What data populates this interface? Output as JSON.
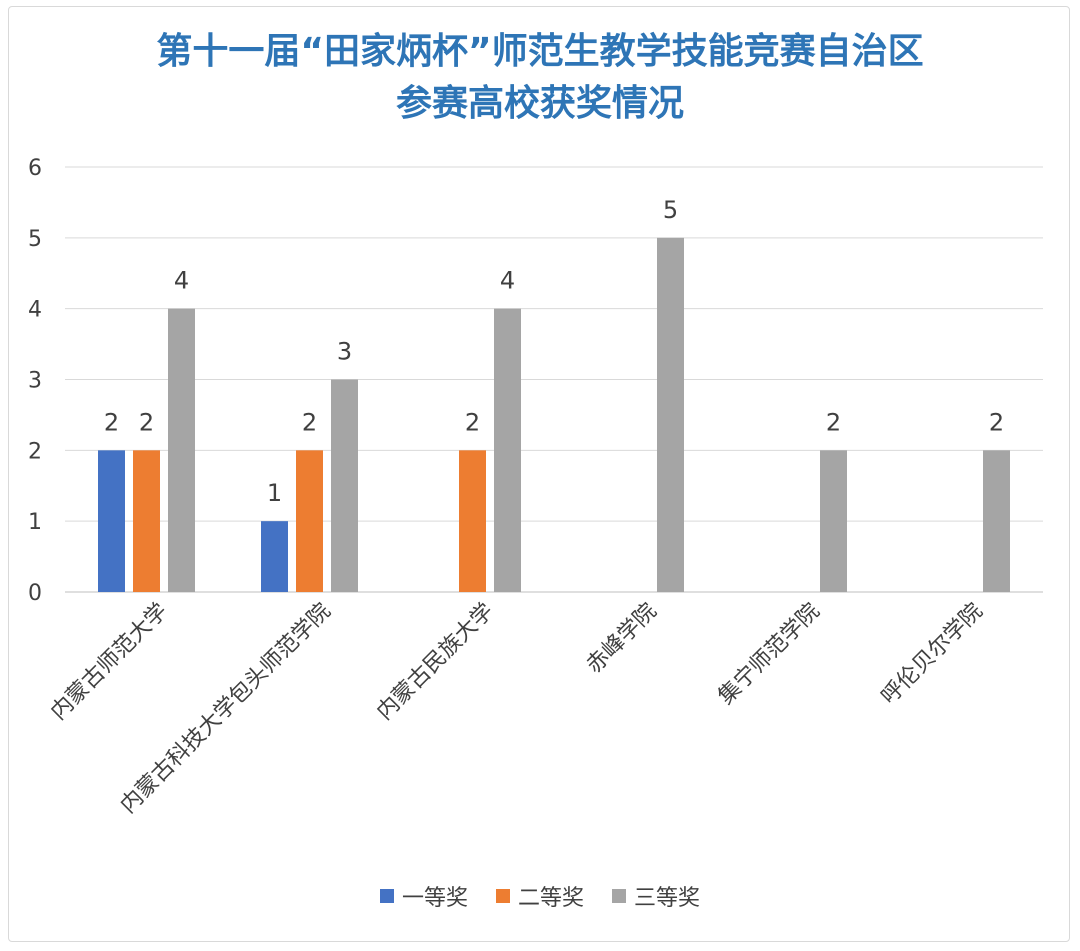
{
  "chart_data": {
    "type": "bar",
    "title": "第十一届“田家炳杯”师范生教学技能竞赛自治区\n参赛高校获奖情况",
    "title_lines": [
      "第十一届“田家炳杯”师范生教学技能竞赛自治区",
      "参赛高校获奖情况"
    ],
    "categories": [
      "内蒙古师范大学",
      "内蒙古科技大学包头师范学院",
      "内蒙古民族大学",
      "赤峰学院",
      "集宁师范学院",
      "呼伦贝尔学院"
    ],
    "series": [
      {
        "name": "一等奖",
        "color": "#4472c4",
        "values": [
          2,
          1,
          null,
          null,
          null,
          null
        ]
      },
      {
        "name": "二等奖",
        "color": "#ed7d31",
        "values": [
          2,
          2,
          2,
          null,
          null,
          null
        ]
      },
      {
        "name": "三等奖",
        "color": "#a5a5a5",
        "values": [
          4,
          3,
          4,
          5,
          2,
          2
        ]
      }
    ],
    "ylim": [
      0,
      6
    ],
    "yticks": [
      0,
      1,
      2,
      3,
      4,
      5,
      6
    ],
    "grid": true,
    "legend_position": "bottom",
    "data_labels": true
  }
}
